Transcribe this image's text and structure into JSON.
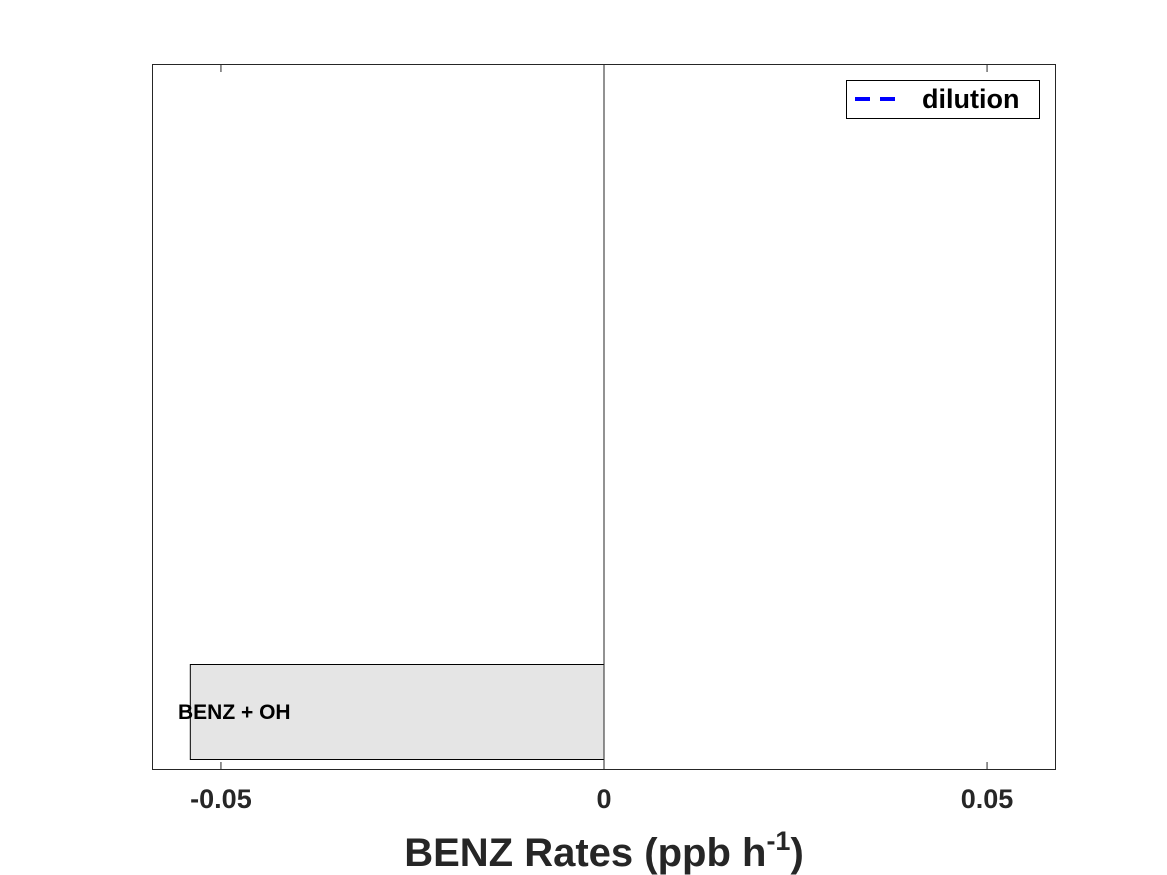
{
  "chart_data": {
    "type": "bar",
    "orientation": "horizontal",
    "categories": [
      "BENZ + OH"
    ],
    "values": [
      -0.054
    ],
    "bar_color": "#e5e5e5",
    "xlim": [
      -0.059,
      0.059
    ],
    "xticks": [
      -0.05,
      0,
      0.05
    ],
    "xtick_labels": [
      "-0.05",
      "0",
      "0.05"
    ],
    "xlabel": {
      "prefix": "BENZ Rates (ppb h",
      "superscript": "-1",
      "suffix": ")"
    },
    "legend": {
      "position": "top-right",
      "entries": [
        {
          "label": "dilution",
          "color": "#0000ff",
          "style": "dashed"
        }
      ]
    },
    "grid": false
  }
}
